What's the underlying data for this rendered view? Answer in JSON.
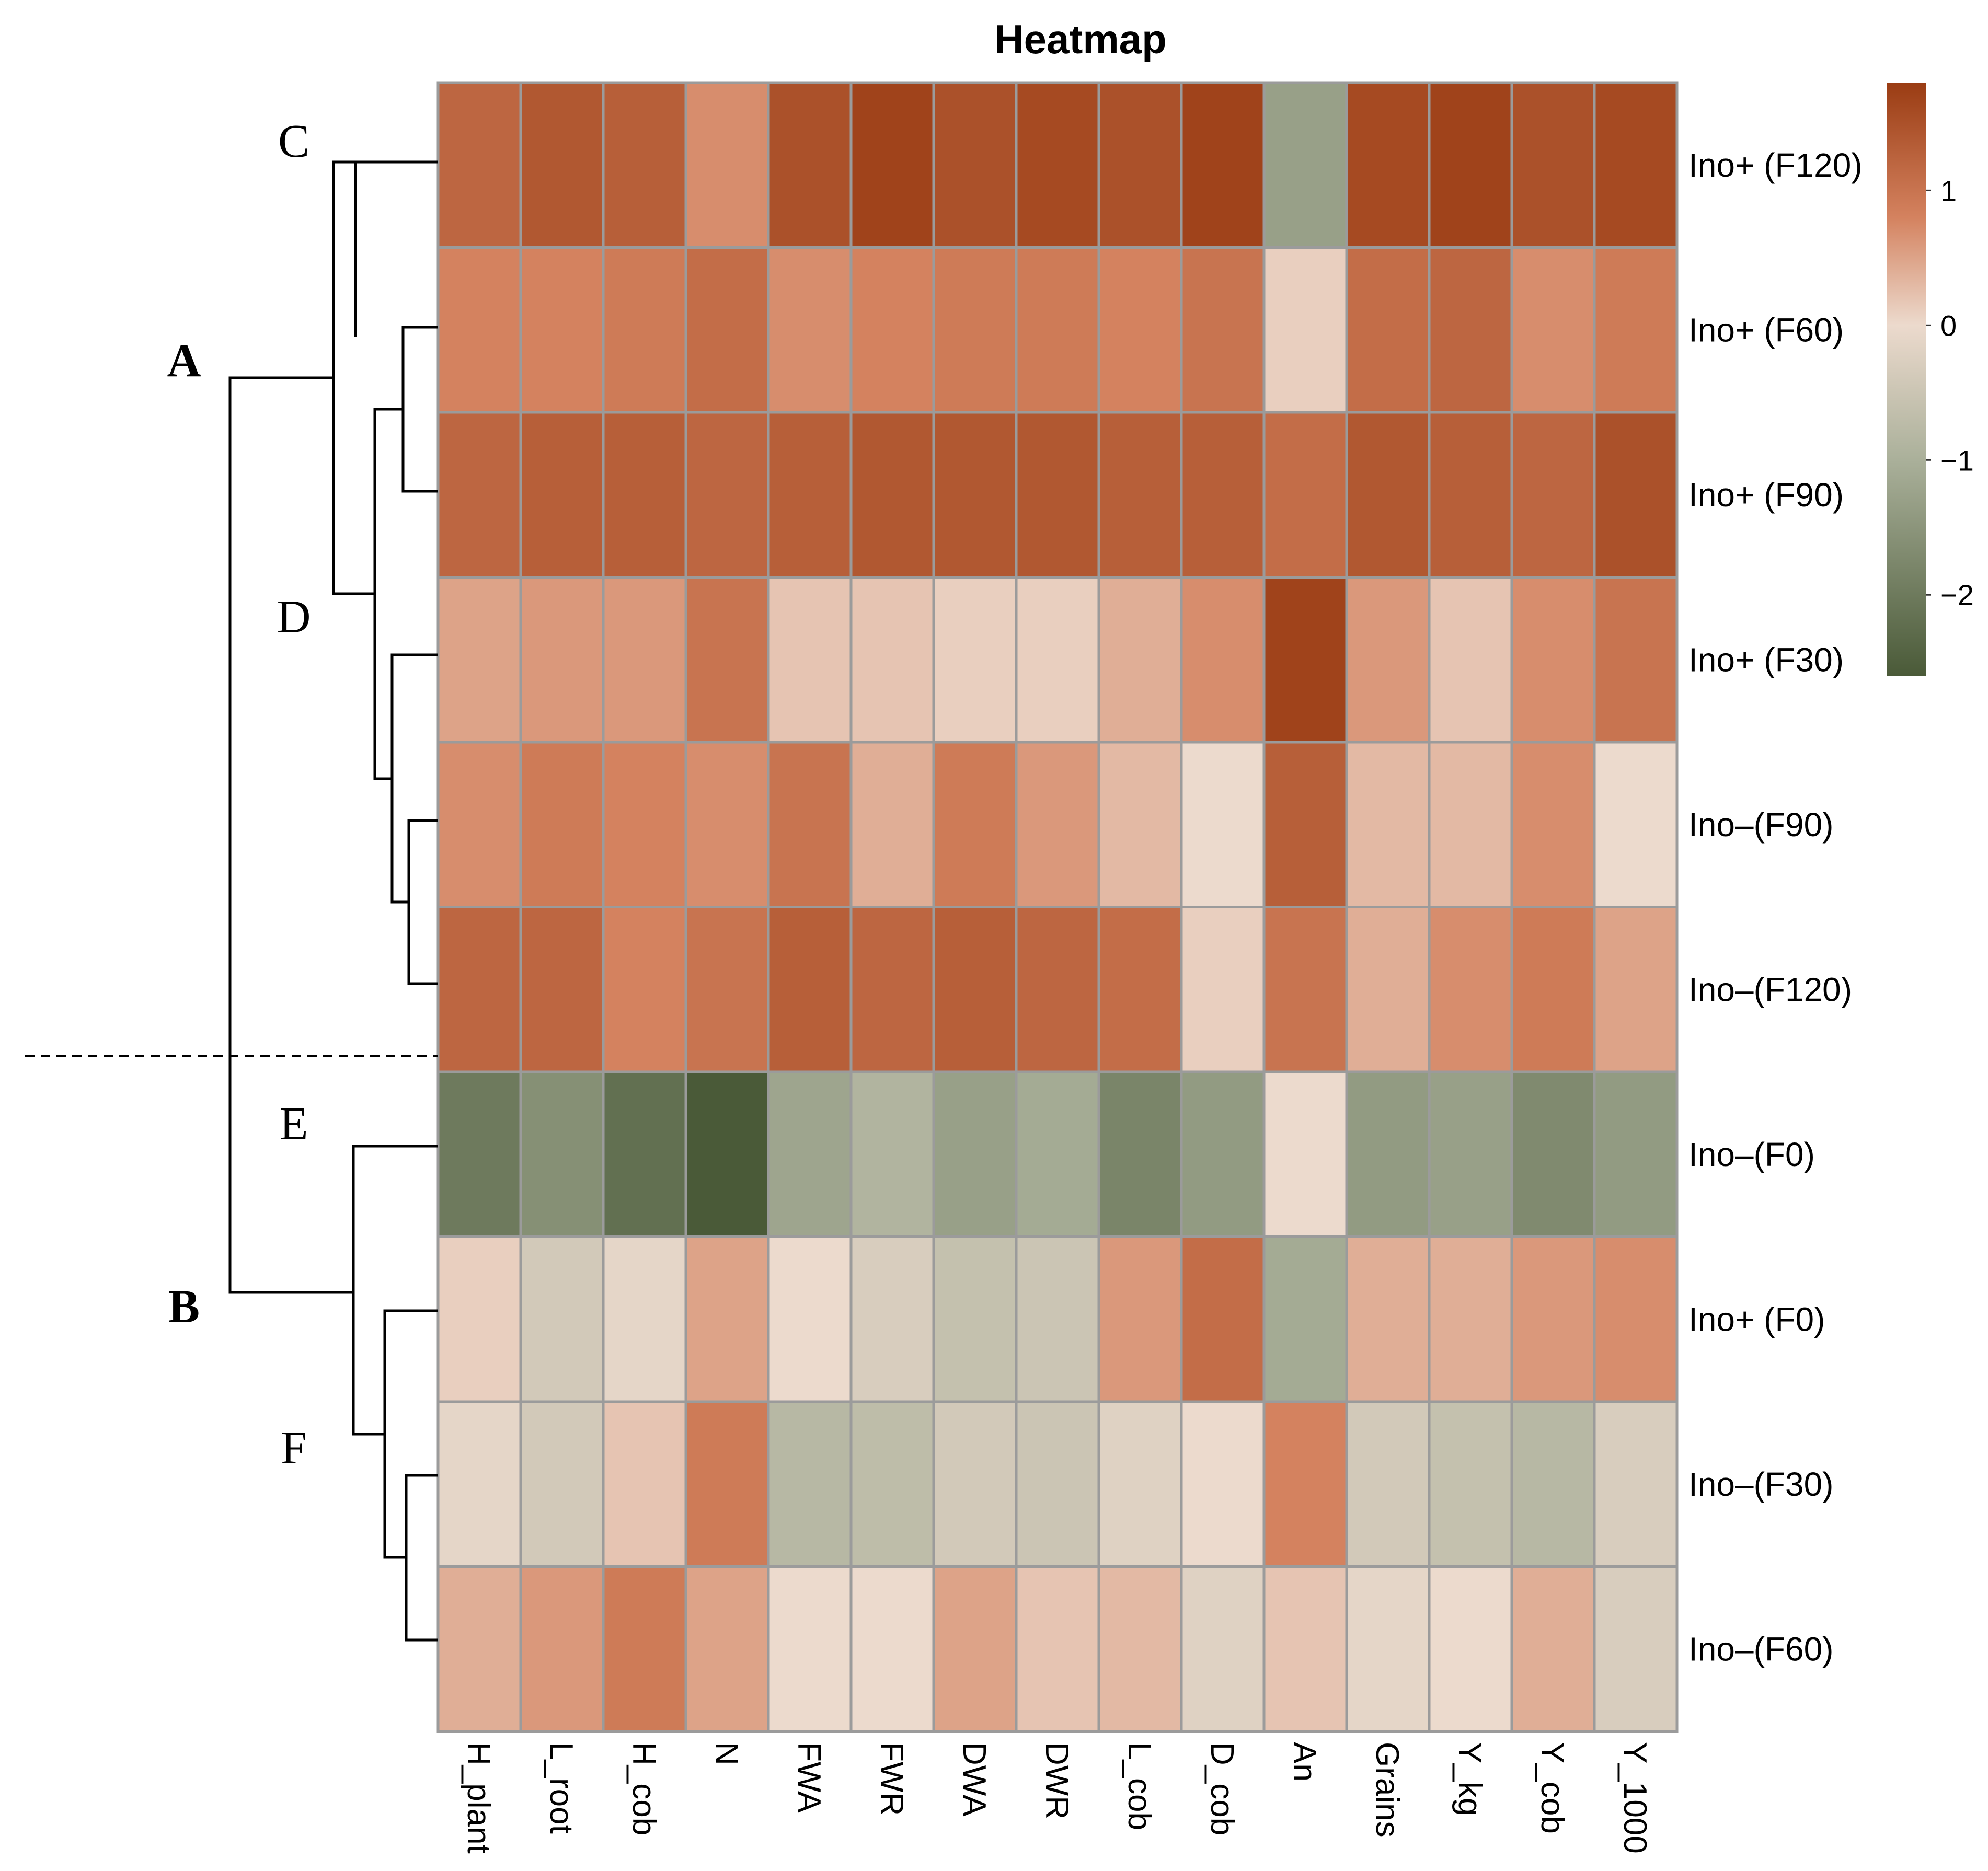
{
  "chart_data": {
    "type": "heatmap",
    "title": "Heatmap",
    "columns": [
      "H_plant",
      "L_root",
      "H_cob",
      "N",
      "FWA",
      "FWR",
      "DWA",
      "DWR",
      "L_cob",
      "D_cob",
      "An",
      "Grains",
      "Y_kg",
      "Y_cob",
      "Y_1000"
    ],
    "rows": [
      "Ino+ (F120)",
      "Ino+ (F60)",
      "Ino+ (F90)",
      "Ino+ (F30)",
      "Ino–(F90)",
      "Ino–(F120)",
      "Ino–(F0)",
      "Ino+ (F0)",
      "Ino–(F30)",
      "Ino–(F60)"
    ],
    "values": [
      [
        1.2,
        1.4,
        1.3,
        0.7,
        1.5,
        1.7,
        1.5,
        1.6,
        1.5,
        1.7,
        -1.3,
        1.6,
        1.7,
        1.5,
        1.6
      ],
      [
        0.8,
        0.8,
        0.9,
        1.1,
        0.7,
        0.8,
        0.9,
        0.9,
        0.8,
        1.0,
        0.1,
        1.1,
        1.2,
        0.7,
        0.9
      ],
      [
        1.2,
        1.3,
        1.3,
        1.2,
        1.3,
        1.4,
        1.4,
        1.4,
        1.3,
        1.3,
        1.1,
        1.4,
        1.3,
        1.2,
        1.5
      ],
      [
        0.5,
        0.6,
        0.6,
        1.0,
        0.2,
        0.2,
        0.1,
        0.1,
        0.4,
        0.7,
        1.7,
        0.6,
        0.2,
        0.7,
        1.0
      ],
      [
        0.7,
        0.9,
        0.8,
        0.7,
        1.0,
        0.4,
        0.9,
        0.6,
        0.3,
        0.0,
        1.3,
        0.3,
        0.3,
        0.7,
        0.0
      ],
      [
        1.2,
        1.2,
        0.8,
        1.0,
        1.3,
        1.2,
        1.3,
        1.2,
        1.1,
        0.1,
        1.0,
        0.4,
        0.7,
        0.9,
        0.5
      ],
      [
        -2.0,
        -1.6,
        -2.2,
        -2.6,
        -1.2,
        -0.9,
        -1.3,
        -1.1,
        -1.8,
        -1.4,
        0.0,
        -1.4,
        -1.3,
        -1.7,
        -1.4
      ],
      [
        0.1,
        -0.4,
        -0.1,
        0.5,
        0.0,
        -0.3,
        -0.6,
        -0.5,
        0.6,
        1.1,
        -1.1,
        0.4,
        0.4,
        0.6,
        0.7
      ],
      [
        -0.1,
        -0.4,
        0.2,
        0.9,
        -0.8,
        -0.7,
        -0.4,
        -0.5,
        -0.2,
        0.0,
        0.8,
        -0.4,
        -0.6,
        -0.8,
        -0.3
      ],
      [
        0.4,
        0.6,
        0.9,
        0.5,
        0.0,
        0.0,
        0.5,
        0.2,
        0.3,
        -0.2,
        0.2,
        -0.1,
        0.0,
        0.4,
        -0.3
      ]
    ],
    "color_scale": {
      "min": -2.6,
      "max": 1.8,
      "stops": [
        {
          "value": -2.6,
          "color": "#4a5a38"
        },
        {
          "value": -1.0,
          "color": "#aab09a"
        },
        {
          "value": 0.0,
          "color": "#ecdacd"
        },
        {
          "value": 0.8,
          "color": "#d4825f"
        },
        {
          "value": 1.8,
          "color": "#9a3c13"
        }
      ],
      "ticks": [
        1,
        0,
        -1,
        -2
      ],
      "tick_labels": [
        "1",
        "0",
        "−1",
        "−2"
      ]
    },
    "clusters": {
      "major": [
        {
          "label": "A",
          "rows": [
            0,
            1,
            2,
            3,
            4,
            5
          ]
        },
        {
          "label": "B",
          "rows": [
            6,
            7,
            8,
            9
          ]
        }
      ],
      "minor": [
        {
          "label": "C",
          "rows": [
            0
          ]
        },
        {
          "label": "D",
          "rows": [
            1,
            2,
            3,
            4,
            5
          ]
        },
        {
          "label": "E",
          "rows": [
            6
          ]
        },
        {
          "label": "F",
          "rows": [
            7,
            8,
            9
          ]
        }
      ]
    },
    "colors": {
      "cell_border": "#9b9b9b",
      "divider": "#000000"
    }
  }
}
